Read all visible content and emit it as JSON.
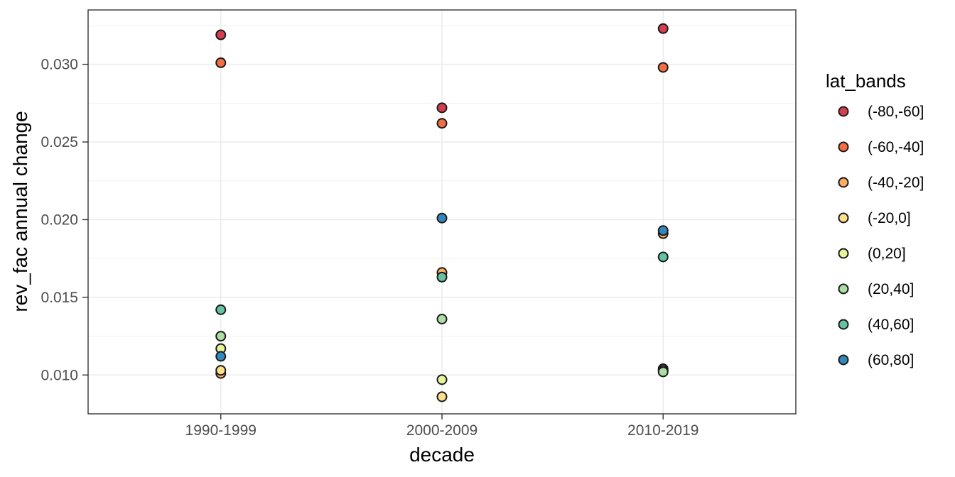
{
  "colors": {
    "background": "#FFFFFF",
    "panel_background": "#FFFFFF",
    "panel_border": "#333333",
    "grid_major": "#EBEBEB",
    "grid_minor": "#F0F0F0",
    "tick_mark": "#333333",
    "tick_label": "#4D4D4D",
    "text": "#000000",
    "point_stroke": "#1A1A1A"
  },
  "chart_data": {
    "type": "scatter",
    "title": "",
    "xlabel": "decade",
    "ylabel": "rev_fac annual change",
    "legend_title": "lat_bands",
    "legend_position": "right",
    "grid": true,
    "categories": [
      "1990-1999",
      "2000-2009",
      "2010-2019"
    ],
    "y_axis": {
      "ticks": [
        0.01,
        0.015,
        0.02,
        0.025,
        0.03
      ],
      "tick_labels": [
        "0.010",
        "0.015",
        "0.020",
        "0.025",
        "0.030"
      ],
      "minor_gridlines": [
        0.0125,
        0.0175,
        0.0225,
        0.0275,
        0.0325
      ],
      "range": [
        0.0075,
        0.0335
      ]
    },
    "series": [
      {
        "name": "(-80,-60]",
        "color": "#D53E4F",
        "values": [
          0.0319,
          0.0272,
          0.0323
        ]
      },
      {
        "name": "(-60,-40]",
        "color": "#F46D43",
        "values": [
          0.0301,
          0.0262,
          0.0298
        ]
      },
      {
        "name": "(-40,-20]",
        "color": "#FDAE61",
        "values": [
          0.0101,
          0.0166,
          0.0191
        ]
      },
      {
        "name": "(-20,0]",
        "color": "#FEE08B",
        "values": [
          0.0103,
          0.0086,
          0.0104
        ]
      },
      {
        "name": "(0,20]",
        "color": "#E6F598",
        "values": [
          0.0117,
          0.0097,
          0.0103
        ]
      },
      {
        "name": "(20,40]",
        "color": "#ABDDA4",
        "values": [
          0.0125,
          0.0136,
          0.0102
        ]
      },
      {
        "name": "(40,60]",
        "color": "#66C2A5",
        "values": [
          0.0142,
          0.0163,
          0.0176
        ]
      },
      {
        "name": "(60,80]",
        "color": "#3288BD",
        "values": [
          0.0112,
          0.0201,
          0.0193
        ]
      }
    ]
  }
}
